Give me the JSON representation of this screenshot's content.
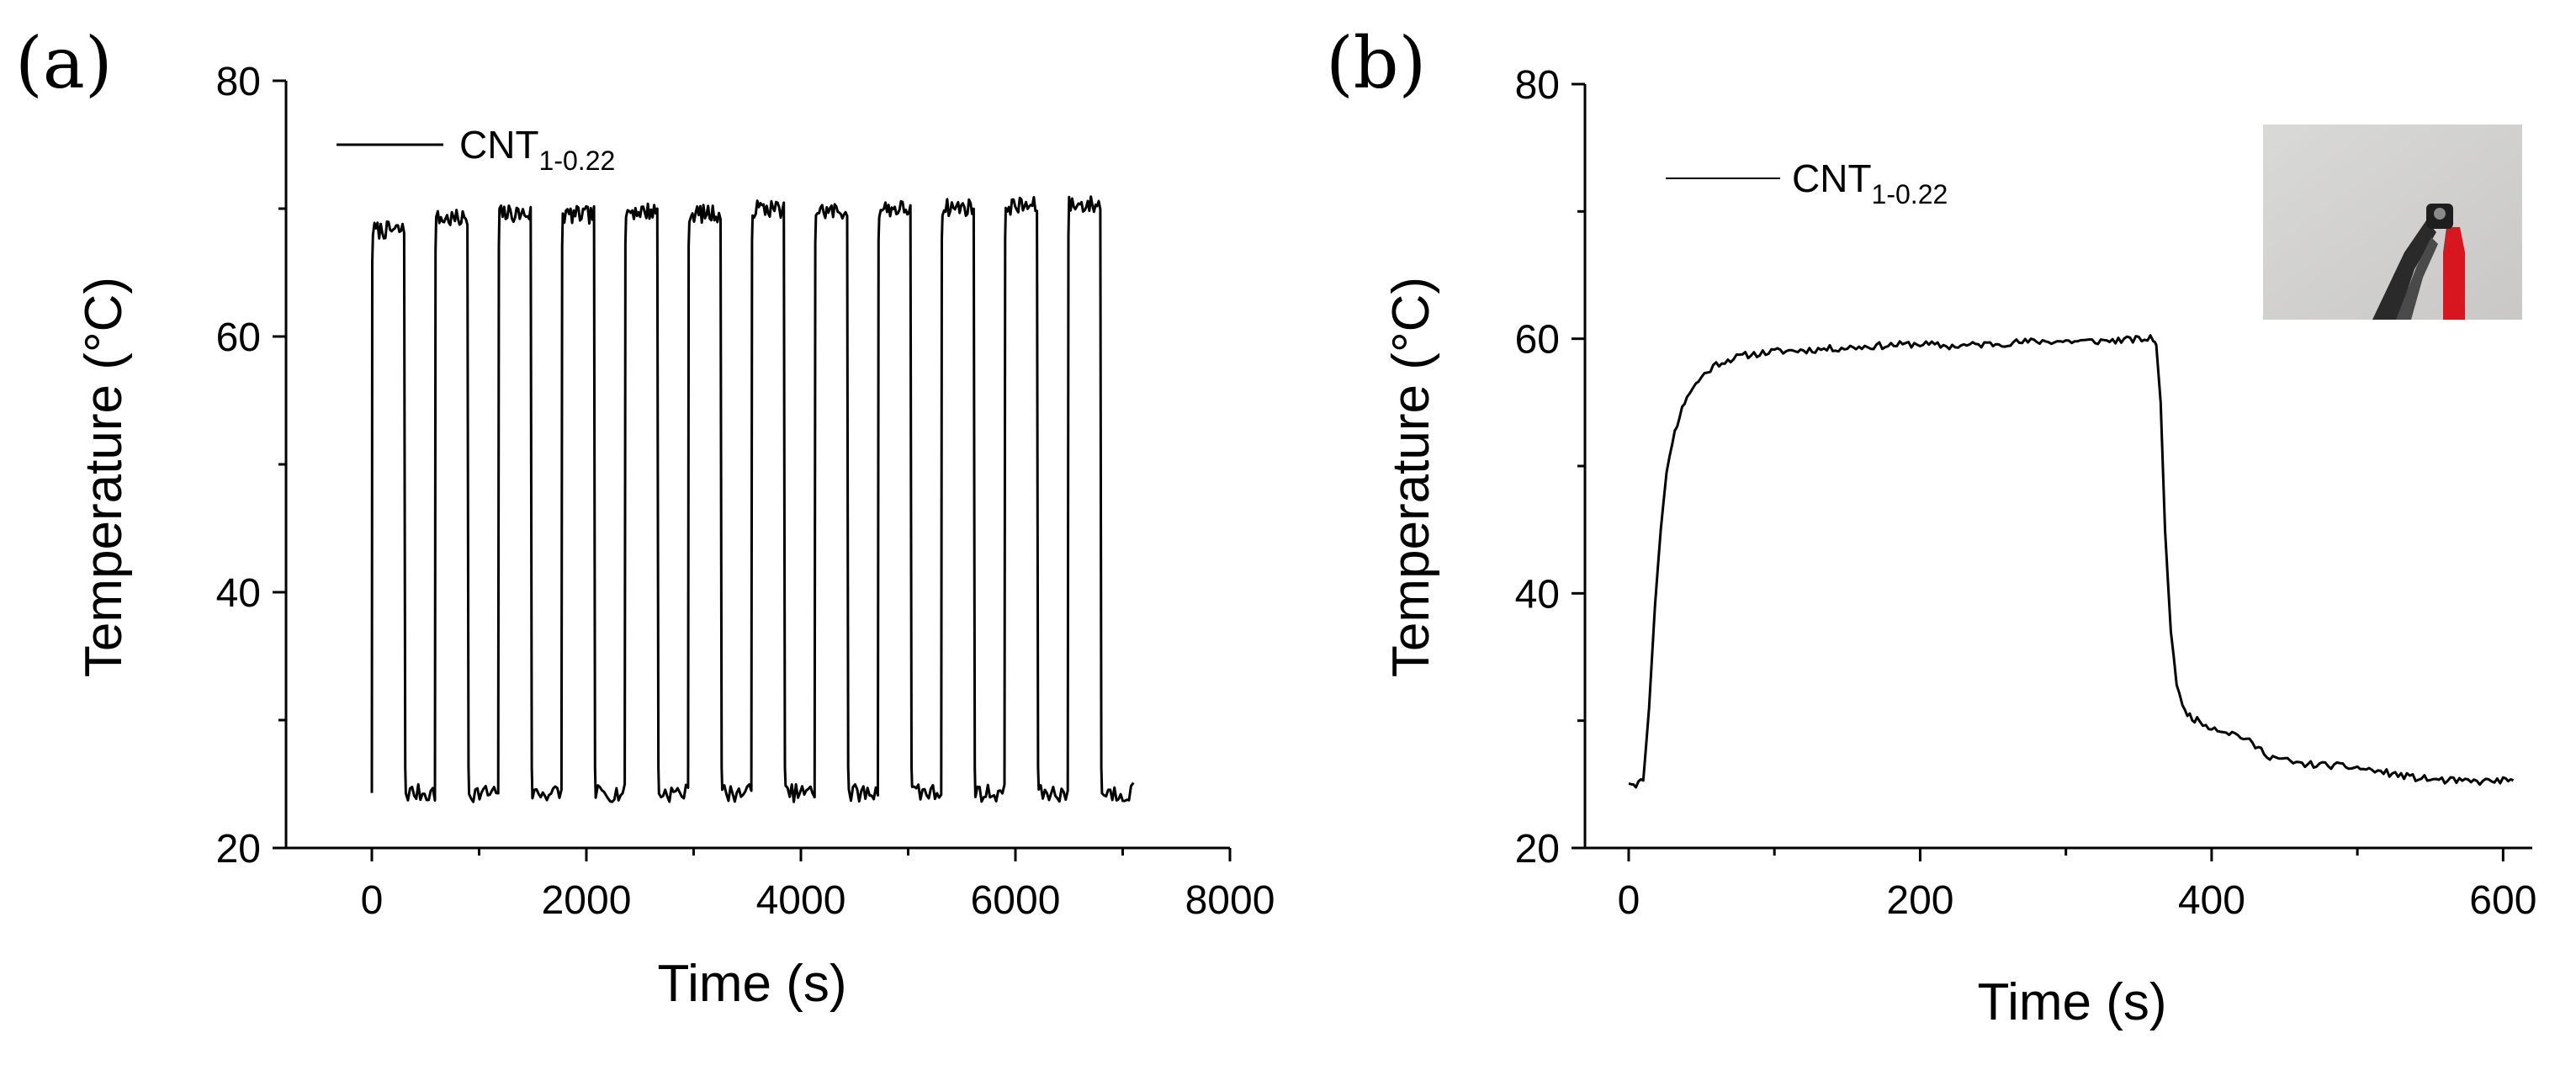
{
  "figure": {
    "panel_labels": [
      "(a)",
      "(b)"
    ]
  },
  "chart_data": [
    {
      "type": "line",
      "panel": "(a)",
      "title": "",
      "xlabel": "Time (s)",
      "ylabel": "Temperature (°C)",
      "xlim": [
        -800,
        8000
      ],
      "ylim": [
        20,
        80
      ],
      "xticks": [
        0,
        2000,
        4000,
        6000,
        8000
      ],
      "xtick_labels": [
        "0",
        "2000",
        "4000",
        "6000",
        "8000"
      ],
      "yticks": [
        20,
        40,
        60,
        80
      ],
      "ytick_labels": [
        "20",
        "40",
        "60",
        "80"
      ],
      "legend": {
        "label": "CNT",
        "subscript": "1-0.22",
        "placement": "top-left"
      },
      "series": [
        {
          "name": "CNT1-0.22",
          "cycles": 12,
          "period_s": 590,
          "on_duration_s": 305,
          "start_s": 0,
          "end_s": 7100,
          "baseline_c": 24.3,
          "plateau_c": [
            68.3,
            69.2,
            69.6,
            69.5,
            69.8,
            69.6,
            70.0,
            69.8,
            70.0,
            70.1,
            70.2,
            70.3
          ]
        }
      ]
    },
    {
      "type": "line",
      "panel": "(b)",
      "title": "",
      "xlabel": "Time (s)",
      "ylabel": "Temperature (°C)",
      "xlim": [
        -30,
        620
      ],
      "ylim": [
        20,
        80
      ],
      "xticks": [
        0,
        200,
        400,
        600
      ],
      "xtick_labels": [
        "0",
        "200",
        "400",
        "600"
      ],
      "yticks": [
        20,
        40,
        60,
        80
      ],
      "ytick_labels": [
        "20",
        "40",
        "60",
        "80"
      ],
      "legend": {
        "label": "CNT",
        "subscript": "1-0.22",
        "placement": "top-left"
      },
      "inset": "photo-of-heater-with-clips",
      "series": [
        {
          "name": "CNT1-0.22",
          "x": [
            0,
            5,
            10,
            14,
            18,
            22,
            26,
            30,
            35,
            40,
            50,
            60,
            70,
            80,
            100,
            120,
            150,
            180,
            200,
            220,
            250,
            280,
            300,
            320,
            340,
            360,
            362,
            365,
            368,
            372,
            376,
            380,
            385,
            390,
            400,
            420,
            440,
            460,
            480,
            500,
            520,
            540,
            560,
            580,
            600,
            607
          ],
          "y": [
            25.2,
            25.0,
            25.3,
            31.0,
            39.0,
            45.0,
            49.5,
            52.0,
            54.0,
            55.5,
            57.0,
            58.0,
            58.4,
            58.7,
            59.0,
            59.1,
            59.3,
            59.5,
            59.6,
            59.4,
            59.6,
            59.8,
            59.8,
            59.8,
            59.9,
            60.0,
            59.5,
            55.0,
            45.0,
            37.0,
            33.0,
            31.0,
            30.4,
            30.0,
            29.5,
            28.8,
            27.2,
            26.6,
            26.5,
            26.3,
            25.9,
            25.5,
            25.3,
            25.2,
            25.3,
            25.3
          ]
        }
      ]
    }
  ]
}
